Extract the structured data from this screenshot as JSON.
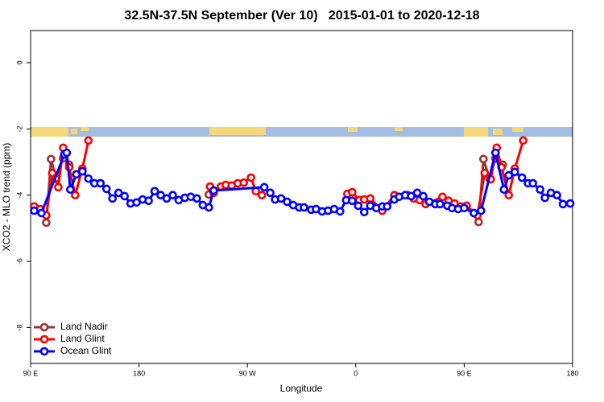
{
  "chart_data": {
    "type": "line",
    "title": "32.5N-37.5N September (Ver 10)   2015-01-01 to 2020-12-18",
    "xlabel": "Longitude",
    "ylabel": "XCO2 - MLO trend (ppm)",
    "xlim": [
      90,
      540
    ],
    "ylim": [
      -9.08,
      0.97
    ],
    "xticks": [
      {
        "value": 90,
        "label": "90 E"
      },
      180,
      {
        "value": 270,
        "label": "90 W"
      },
      {
        "value": 360,
        "label": "0"
      },
      {
        "value": 450,
        "label": "90 E"
      },
      {
        "value": 540,
        "label": "180"
      }
    ],
    "yticks": [
      0,
      -2,
      -4,
      -6,
      -8
    ],
    "legend": "bottom-left",
    "series": [
      {
        "name": "Land Nadir",
        "color": "#993333",
        "x": [
          103,
          107,
          111,
          117,
          122,
          180,
          238,
          350,
          462,
          466,
          471,
          476,
          482
        ],
        "values": [
          -4.83,
          -2.91,
          -3.5,
          -2.89,
          -3.08,
          null,
          -3.98,
          null,
          -4.81,
          -2.91,
          -3.5,
          -2.89,
          -3.08
        ]
      },
      {
        "name": "Land Glint",
        "color": "#ff0000",
        "x": [
          93,
          98,
          103,
          108,
          113,
          117,
          122,
          127,
          133,
          138,
          190,
          239,
          242,
          248,
          252,
          257,
          262,
          267,
          273,
          277,
          282,
          320,
          353,
          357,
          363,
          367,
          372,
          382,
          392,
          403,
          408,
          413,
          418,
          432,
          437,
          442,
          447,
          452,
          461,
          467,
          472,
          477,
          481,
          487,
          492,
          499
        ],
        "values": [
          -4.34,
          -4.42,
          -4.61,
          -3.33,
          -3.76,
          -2.57,
          -3.16,
          -4.0,
          -3.2,
          -2.35,
          null,
          -3.74,
          -3.93,
          -3.74,
          -3.69,
          -3.71,
          -3.64,
          -3.62,
          -3.47,
          -3.88,
          -4.0,
          null,
          -3.96,
          -3.91,
          -4.15,
          -4.13,
          -4.1,
          -4.47,
          -4.0,
          -4.0,
          -4.1,
          -4.15,
          -4.27,
          -4.05,
          -4.17,
          -4.25,
          -4.34,
          -4.32,
          -4.61,
          -3.33,
          -3.52,
          -2.57,
          -3.16,
          -4.0,
          -3.2,
          -2.35
        ]
      },
      {
        "name": "Ocean Glint",
        "color": "#0000ff",
        "x": [
          93,
          99,
          118,
          120,
          123,
          128,
          133,
          138,
          143,
          148,
          153,
          158,
          163,
          168,
          173,
          178,
          183,
          188,
          193,
          198,
          203,
          208,
          213,
          218,
          223,
          228,
          233,
          238,
          242,
          284,
          289,
          293,
          298,
          303,
          308,
          313,
          317,
          323,
          327,
          332,
          337,
          342,
          347,
          352,
          357,
          362,
          367,
          372,
          377,
          382,
          386,
          392,
          396,
          401,
          406,
          411,
          416,
          421,
          426,
          430,
          436,
          440,
          445,
          450,
          458,
          464,
          476,
          483,
          487,
          492,
          498,
          503,
          507,
          513,
          517,
          522,
          527,
          532,
          538
        ],
        "values": [
          -4.47,
          -4.54,
          -2.77,
          -2.72,
          -3.83,
          -3.37,
          -3.28,
          -3.5,
          -3.64,
          -3.64,
          -3.81,
          -4.1,
          -3.93,
          -4.03,
          -4.25,
          -4.22,
          -4.13,
          -4.17,
          -3.88,
          -4.0,
          -4.1,
          -4.0,
          -4.15,
          -4.08,
          -4.05,
          -4.1,
          -4.3,
          -4.37,
          -3.86,
          -3.76,
          -3.93,
          -4.13,
          -4.1,
          -4.2,
          -4.3,
          -4.37,
          -4.37,
          -4.44,
          -4.42,
          -4.49,
          -4.47,
          -4.42,
          -4.49,
          -4.15,
          -4.17,
          -4.32,
          -4.51,
          -4.32,
          -4.39,
          -4.34,
          -4.34,
          -4.13,
          -4.05,
          -4.0,
          -4.03,
          -3.93,
          -4.03,
          -4.2,
          -4.27,
          -4.27,
          -4.32,
          -4.39,
          -4.42,
          -4.39,
          -4.54,
          -4.47,
          -2.72,
          -3.83,
          -3.4,
          -3.3,
          -3.47,
          -3.64,
          -3.64,
          -3.83,
          -4.08,
          -3.93,
          -4.0,
          -4.27,
          -4.25
        ]
      }
    ]
  }
}
